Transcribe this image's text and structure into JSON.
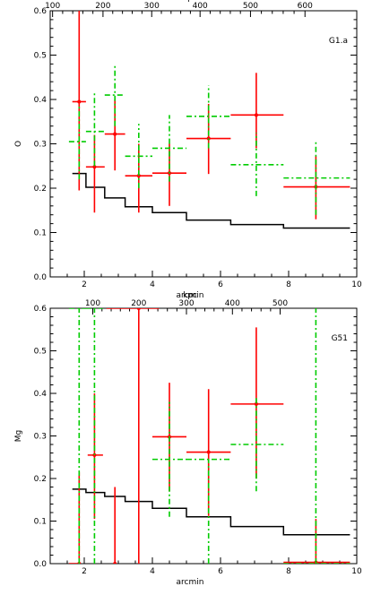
{
  "chart_data": [
    {
      "type": "scatter",
      "panel_label": "G1.a",
      "xlabel": "arcmin",
      "x2label": "kpc",
      "ylabel": "O",
      "xlim": [
        1,
        10
      ],
      "ylim": [
        0,
        0.6
      ],
      "x_ticks": [
        2,
        4,
        6,
        8,
        10
      ],
      "x_tick_labels": [
        "2",
        "4",
        "6",
        "8",
        "10"
      ],
      "y_ticks": [
        0,
        0.1,
        0.2,
        0.3,
        0.4,
        0.5,
        0.6
      ],
      "y_tick_labels": [
        "0.0",
        "0.1",
        "0.2",
        "0.3",
        "0.4",
        "0.5",
        "0.6"
      ],
      "x2_ticks": [
        100,
        200,
        300,
        400,
        500,
        600
      ],
      "x2_tick_labels": [
        "100",
        "200",
        "300",
        "400",
        "500",
        "600"
      ],
      "x2_positions_arcmin": [
        1.07,
        2.55,
        3.98,
        5.4,
        6.88,
        8.48
      ],
      "series": [
        {
          "color": "#ff0000",
          "dash": "",
          "points": [
            {
              "x": 1.85,
              "xerr": [
                1.65,
                2.05
              ],
              "y": 0.395,
              "yerr": [
                0.195,
                0.6
              ]
            },
            {
              "x": 2.3,
              "xerr": [
                2.05,
                2.6
              ],
              "y": 0.248,
              "yerr": [
                0.145,
                0.32
              ]
            },
            {
              "x": 2.9,
              "xerr": [
                2.6,
                3.2
              ],
              "y": 0.322,
              "yerr": [
                0.24,
                0.4
              ]
            },
            {
              "x": 3.6,
              "xerr": [
                3.2,
                4.0
              ],
              "y": 0.228,
              "yerr": [
                0.145,
                0.3
              ]
            },
            {
              "x": 4.5,
              "xerr": [
                4.0,
                5.0
              ],
              "y": 0.234,
              "yerr": [
                0.16,
                0.3
              ]
            },
            {
              "x": 5.65,
              "xerr": [
                5.0,
                6.3
              ],
              "y": 0.312,
              "yerr": [
                0.232,
                0.39
              ]
            },
            {
              "x": 7.05,
              "xerr": [
                6.3,
                7.85
              ],
              "y": 0.365,
              "yerr": [
                0.29,
                0.46
              ]
            },
            {
              "x": 8.8,
              "xerr": [
                7.85,
                9.8
              ],
              "y": 0.203,
              "yerr": [
                0.13,
                0.272
              ]
            }
          ]
        },
        {
          "color": "#00cc00",
          "dash": "6,3,2,3",
          "points": [
            {
              "x": 1.85,
              "xerr": [
                1.55,
                2.05
              ],
              "y": 0.305,
              "yerr": [
                0.22,
                0.39
              ]
            },
            {
              "x": 2.3,
              "xerr": [
                2.05,
                2.6
              ],
              "y": 0.328,
              "yerr": [
                0.25,
                0.415
              ]
            },
            {
              "x": 2.9,
              "xerr": [
                2.6,
                3.2
              ],
              "y": 0.41,
              "yerr": [
                0.34,
                0.48
              ]
            },
            {
              "x": 3.6,
              "xerr": [
                3.2,
                4.0
              ],
              "y": 0.272,
              "yerr": [
                0.2,
                0.345
              ]
            },
            {
              "x": 4.5,
              "xerr": [
                4.0,
                5.0
              ],
              "y": 0.29,
              "yerr": [
                0.215,
                0.365
              ]
            },
            {
              "x": 5.65,
              "xerr": [
                5.0,
                6.3
              ],
              "y": 0.362,
              "yerr": [
                0.29,
                0.432
              ]
            },
            {
              "x": 7.05,
              "xerr": [
                6.3,
                7.85
              ],
              "y": 0.253,
              "yerr": [
                0.182,
                0.325
              ]
            },
            {
              "x": 8.8,
              "xerr": [
                7.85,
                9.8
              ],
              "y": 0.223,
              "yerr": [
                0.14,
                0.308
              ]
            }
          ]
        }
      ],
      "step_line": {
        "color": "#000000",
        "edges": [
          1.65,
          2.05,
          2.6,
          3.2,
          4.0,
          5.0,
          6.3,
          7.85,
          9.8
        ],
        "values": [
          0.233,
          0.202,
          0.178,
          0.158,
          0.145,
          0.128,
          0.118,
          0.11
        ]
      }
    },
    {
      "type": "scatter",
      "panel_label": "G51",
      "xlabel": "arcmin",
      "x2label": "kpc",
      "ylabel": "Mg",
      "xlim": [
        1,
        10
      ],
      "ylim": [
        0,
        0.6
      ],
      "x_ticks": [
        2,
        4,
        6,
        8,
        10
      ],
      "x_tick_labels": [
        "2",
        "4",
        "6",
        "8",
        "10"
      ],
      "y_ticks": [
        0,
        0.1,
        0.2,
        0.3,
        0.4,
        0.5,
        0.6
      ],
      "y_tick_labels": [
        "0.0",
        "0.1",
        "0.2",
        "0.3",
        "0.4",
        "0.5",
        "0.6"
      ],
      "x2_ticks": [
        100,
        200,
        300,
        400,
        500
      ],
      "x2_tick_labels": [
        "100",
        "200",
        "300",
        "400",
        "500"
      ],
      "x2_positions_arcmin": [
        2.25,
        3.6,
        5.0,
        6.35,
        7.75
      ],
      "series": [
        {
          "color": "#ff0000",
          "dash": "",
          "points": [
            {
              "x": 1.85,
              "xerr": [
                1.55,
                1.85
              ],
              "y": 0.0,
              "yerr": [
                0.0,
                0.215
              ]
            },
            {
              "x": 2.3,
              "xerr": [
                2.1,
                2.55
              ],
              "y": 0.255,
              "yerr": [
                0.105,
                0.4
              ]
            },
            {
              "x": 2.9,
              "xerr": [
                2.9,
                2.9
              ],
              "y": 0.0,
              "yerr": [
                0.0,
                0.18
              ]
            },
            {
              "x": 3.6,
              "xerr": [
                2.65,
                4.2
              ],
              "y": 0.6,
              "yerr": [
                0.0,
                0.6
              ]
            },
            {
              "x": 4.5,
              "xerr": [
                4.0,
                5.0
              ],
              "y": 0.298,
              "yerr": [
                0.17,
                0.425
              ]
            },
            {
              "x": 5.65,
              "xerr": [
                5.0,
                6.3
              ],
              "y": 0.262,
              "yerr": [
                0.112,
                0.41
              ]
            },
            {
              "x": 7.05,
              "xerr": [
                6.3,
                7.85
              ],
              "y": 0.375,
              "yerr": [
                0.2,
                0.555
              ]
            },
            {
              "x": 8.8,
              "xerr": [
                7.85,
                9.8
              ],
              "y": 0.003,
              "yerr": [
                0.0,
                0.105
              ]
            }
          ]
        },
        {
          "color": "#00cc00",
          "dash": "6,3,2,3",
          "points": [
            {
              "x": 1.85,
              "xerr": [
                1.55,
                2.05
              ],
              "y": 0.6,
              "yerr": [
                0.0,
                0.6
              ]
            },
            {
              "x": 2.3,
              "xerr": [
                2.05,
                2.55
              ],
              "y": 0.6,
              "yerr": [
                0.0,
                0.6
              ]
            },
            {
              "x": 4.5,
              "xerr": [
                4.0,
                5.0
              ],
              "y": 0.245,
              "yerr": [
                0.11,
                0.38
              ]
            },
            {
              "x": 5.65,
              "xerr": [
                5.0,
                6.3
              ],
              "y": 0.245,
              "yerr": [
                0.0,
                0.245
              ]
            },
            {
              "x": 7.05,
              "xerr": [
                6.3,
                7.85
              ],
              "y": 0.28,
              "yerr": [
                0.17,
                0.39
              ]
            },
            {
              "x": 8.8,
              "xerr": [
                7.85,
                9.8
              ],
              "y": 0.0,
              "yerr": [
                0.0,
                0.6
              ]
            }
          ]
        }
      ],
      "step_line": {
        "color": "#000000",
        "edges": [
          1.65,
          2.05,
          2.6,
          3.2,
          4.0,
          5.0,
          6.3,
          7.85,
          9.8
        ],
        "values": [
          0.175,
          0.167,
          0.158,
          0.146,
          0.13,
          0.11,
          0.087,
          0.068
        ]
      }
    }
  ]
}
